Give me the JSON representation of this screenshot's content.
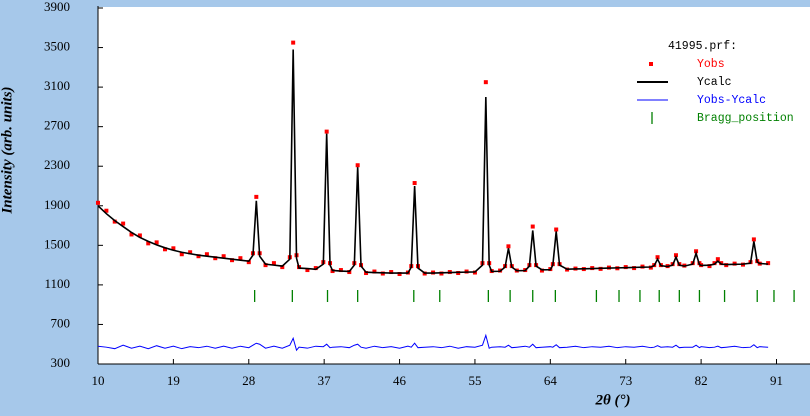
{
  "chart_data": {
    "type": "rietveld",
    "y_label": "Intensity (arb. units)",
    "x_label": "2θ (°)",
    "legend_title": "41995.prf:",
    "x": [
      10,
      11,
      12,
      13,
      14,
      15,
      16,
      17,
      18,
      19,
      20,
      21,
      22,
      23,
      24,
      25,
      26,
      27,
      28,
      28.5,
      28.9,
      29.3,
      30,
      31,
      32,
      32.9,
      33.3,
      33.7,
      34,
      35,
      36,
      36.9,
      37.3,
      37.7,
      38,
      39,
      40,
      40.6,
      41.0,
      41.4,
      42,
      43,
      44,
      45,
      46,
      47,
      47.4,
      47.8,
      48.2,
      49,
      50,
      51,
      52,
      53,
      54,
      55,
      55.9,
      56.3,
      56.7,
      57,
      58,
      58.6,
      59.0,
      59.4,
      60,
      61,
      61.5,
      61.9,
      62.3,
      63,
      64,
      64.3,
      64.7,
      65.1,
      66,
      67,
      68,
      69,
      70,
      71,
      72,
      73,
      74,
      75,
      76,
      76.4,
      76.8,
      77.2,
      78,
      78.6,
      79.0,
      79.4,
      80,
      81.0,
      81.4,
      81.8,
      82,
      83,
      83.6,
      84.0,
      84.4,
      85,
      86,
      87,
      87.9,
      88.3,
      88.7,
      89,
      90
    ],
    "series": [
      {
        "name": "Yobs",
        "color": "#ff0000",
        "style": "points",
        "values": [
          1930,
          1850,
          1740,
          1720,
          1610,
          1600,
          1520,
          1530,
          1460,
          1470,
          1410,
          1430,
          1390,
          1410,
          1370,
          1390,
          1350,
          1370,
          1330,
          1420,
          1990,
          1420,
          1300,
          1320,
          1280,
          1380,
          3550,
          1400,
          1280,
          1250,
          1270,
          1330,
          2650,
          1320,
          1240,
          1250,
          1230,
          1320,
          2310,
          1300,
          1220,
          1235,
          1215,
          1230,
          1210,
          1225,
          1290,
          2130,
          1290,
          1215,
          1225,
          1215,
          1230,
          1220,
          1235,
          1225,
          1320,
          3150,
          1320,
          1240,
          1245,
          1290,
          1490,
          1290,
          1245,
          1250,
          1300,
          1690,
          1300,
          1245,
          1260,
          1310,
          1660,
          1310,
          1255,
          1265,
          1260,
          1270,
          1262,
          1275,
          1268,
          1280,
          1270,
          1285,
          1275,
          1300,
          1380,
          1300,
          1290,
          1310,
          1400,
          1310,
          1295,
          1320,
          1440,
          1320,
          1300,
          1290,
          1320,
          1360,
          1320,
          1300,
          1315,
          1305,
          1330,
          1560,
          1340,
          1315,
          1320
        ]
      },
      {
        "name": "Ycalc",
        "color": "#000000",
        "style": "line",
        "values": [
          1900,
          1820,
          1750,
          1690,
          1630,
          1580,
          1540,
          1505,
          1475,
          1450,
          1430,
          1415,
          1400,
          1390,
          1380,
          1370,
          1360,
          1350,
          1340,
          1400,
          1950,
          1390,
          1310,
          1300,
          1290,
          1360,
          3480,
          1370,
          1270,
          1265,
          1258,
          1310,
          2630,
          1300,
          1246,
          1240,
          1236,
          1300,
          2290,
          1290,
          1228,
          1225,
          1222,
          1220,
          1220,
          1220,
          1280,
          2100,
          1270,
          1220,
          1220,
          1222,
          1225,
          1227,
          1229,
          1231,
          1300,
          3000,
          1300,
          1236,
          1238,
          1280,
          1470,
          1280,
          1243,
          1245,
          1290,
          1650,
          1290,
          1252,
          1254,
          1300,
          1640,
          1300,
          1259,
          1261,
          1263,
          1265,
          1268,
          1270,
          1272,
          1274,
          1277,
          1279,
          1281,
          1295,
          1360,
          1295,
          1286,
          1300,
          1380,
          1300,
          1290,
          1310,
          1420,
          1305,
          1297,
          1299,
          1310,
          1340,
          1310,
          1306,
          1308,
          1310,
          1320,
          1540,
          1330,
          1317,
          1310
        ]
      },
      {
        "name": "Yobs-Ycalc",
        "color": "#0000ff",
        "style": "line",
        "values": [
          480,
          470,
          455,
          490,
          460,
          480,
          455,
          485,
          460,
          480,
          455,
          475,
          465,
          480,
          460,
          480,
          460,
          480,
          465,
          490,
          510,
          500,
          460,
          480,
          460,
          490,
          560,
          440,
          470,
          460,
          480,
          475,
          500,
          465,
          470,
          475,
          465,
          490,
          500,
          470,
          460,
          480,
          465,
          475,
          460,
          480,
          470,
          510,
          465,
          470,
          475,
          465,
          480,
          460,
          475,
          470,
          490,
          590,
          460,
          470,
          475,
          470,
          490,
          465,
          470,
          480,
          470,
          500,
          465,
          470,
          475,
          470,
          495,
          465,
          470,
          480,
          465,
          475,
          470,
          480,
          465,
          475,
          470,
          480,
          465,
          470,
          485,
          470,
          475,
          470,
          490,
          465,
          470,
          470,
          490,
          465,
          475,
          465,
          470,
          480,
          465,
          470,
          480,
          465,
          470,
          495,
          465,
          475,
          470
        ]
      }
    ],
    "bragg": {
      "name": "Bragg_position",
      "color": "#008000",
      "x": [
        28.7,
        33.2,
        37.4,
        41.0,
        47.7,
        50.8,
        56.6,
        59.2,
        61.9,
        64.6,
        69.5,
        72.2,
        74.7,
        77.0,
        79.4,
        81.8,
        84.8,
        88.7,
        90.7,
        93.1
      ]
    },
    "xlim": [
      10,
      95
    ],
    "ylim": [
      300,
      3900
    ],
    "xticks": [
      10,
      19,
      28,
      37,
      46,
      55,
      64,
      73,
      82,
      91
    ],
    "yticks": [
      300,
      700,
      1100,
      1500,
      1900,
      2300,
      2700,
      3100,
      3500,
      3900
    ]
  }
}
